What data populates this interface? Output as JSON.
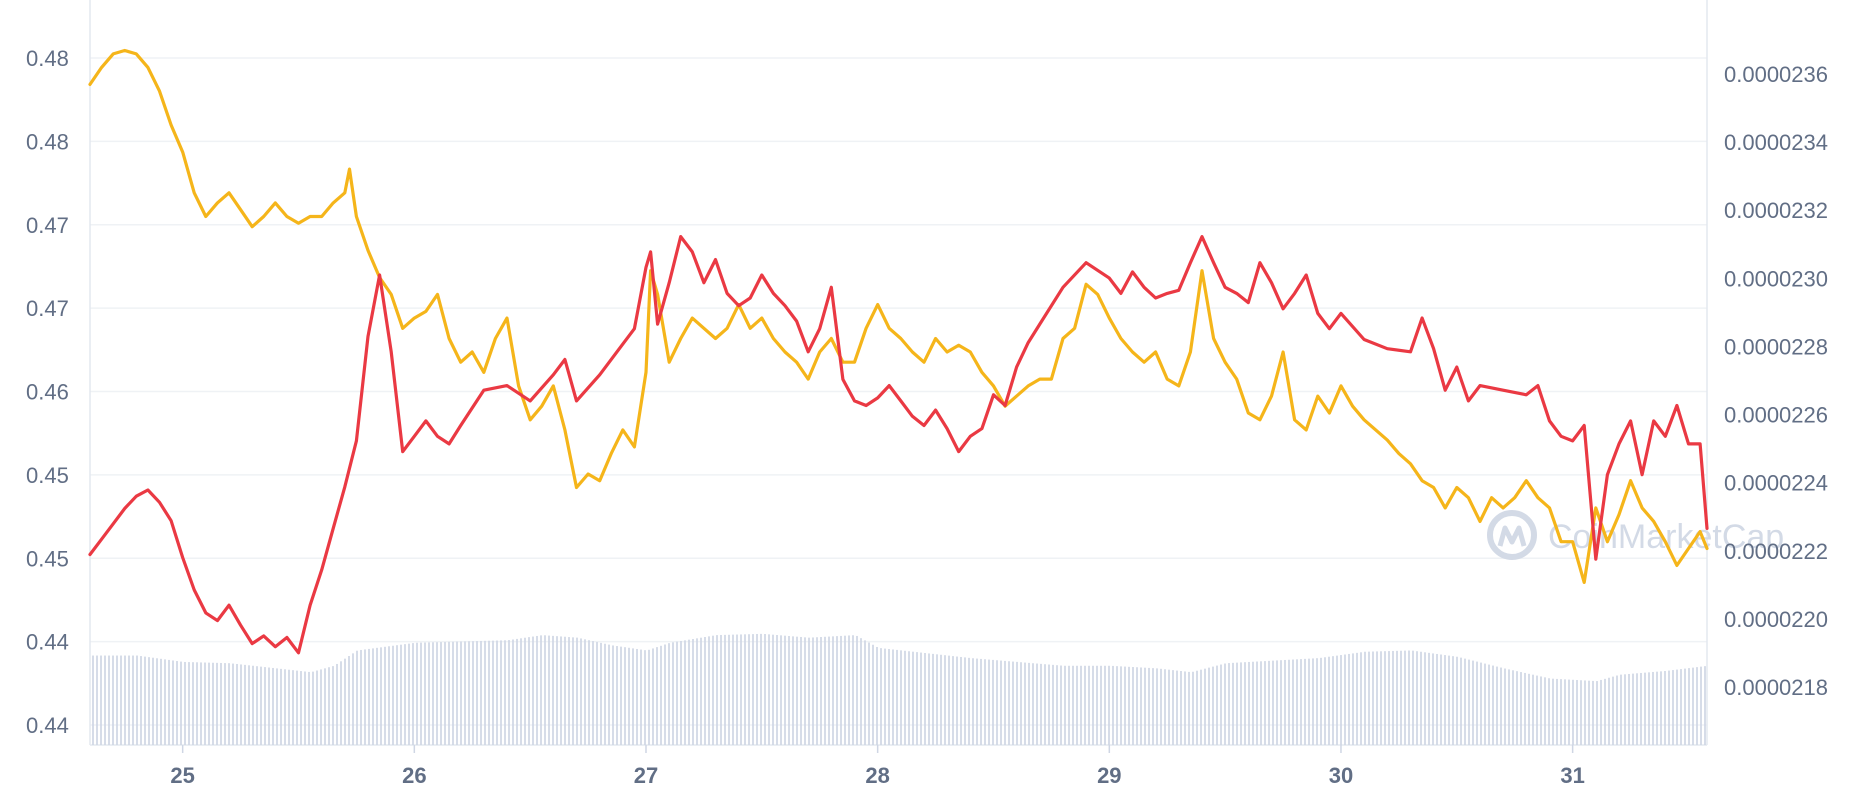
{
  "watermark": "CoinMarketCap",
  "chart_data": {
    "type": "line",
    "title": "",
    "xlabel": "",
    "ylabel": "",
    "grid": true,
    "x_ticks": [
      "25",
      "26",
      "27",
      "28",
      "29",
      "30",
      "31"
    ],
    "x_range": [
      24.6,
      31.58
    ],
    "y_left_ticks": [
      "0.48",
      "0.48",
      "0.47",
      "0.47",
      "0.46",
      "0.45",
      "0.45",
      "0.44",
      "0.44"
    ],
    "y_left_range": [
      0.4374,
      0.4846
    ],
    "y_right_ticks": [
      "0.0000236",
      "0.0000234",
      "0.0000232",
      "0.0000230",
      "0.0000228",
      "0.0000226",
      "0.0000224",
      "0.0000222",
      "0.0000220",
      "0.0000218"
    ],
    "y_right_range": [
      2.162e-05,
      2.376e-05
    ],
    "colors": {
      "left_series": "#ea3943",
      "right_series": "#f5b51a",
      "volume": "#cfd6e4",
      "grid": "#eff2f5"
    },
    "series": [
      {
        "axis": "left",
        "x": [
          24.6,
          24.65,
          24.7,
          24.75,
          24.8,
          24.85,
          24.9,
          24.95,
          25.0,
          25.05,
          25.1,
          25.15,
          25.2,
          25.25,
          25.3,
          25.35,
          25.4,
          25.45,
          25.5,
          25.55,
          25.6,
          25.65,
          25.7,
          25.75,
          25.8,
          25.85,
          25.9,
          25.95,
          26.0,
          26.05,
          26.1,
          26.15,
          26.2,
          26.3,
          26.4,
          26.5,
          26.6,
          26.65,
          26.7,
          26.8,
          26.9,
          26.95,
          27.0,
          27.02,
          27.05,
          27.1,
          27.15,
          27.2,
          27.25,
          27.3,
          27.35,
          27.4,
          27.45,
          27.5,
          27.55,
          27.6,
          27.65,
          27.7,
          27.75,
          27.8,
          27.85,
          27.9,
          27.95,
          28.0,
          28.05,
          28.1,
          28.15,
          28.2,
          28.25,
          28.3,
          28.35,
          28.4,
          28.45,
          28.5,
          28.55,
          28.6,
          28.65,
          28.7,
          28.8,
          28.9,
          29.0,
          29.05,
          29.1,
          29.15,
          29.2,
          29.25,
          29.3,
          29.35,
          29.4,
          29.45,
          29.5,
          29.55,
          29.6,
          29.65,
          29.7,
          29.75,
          29.8,
          29.85,
          29.9,
          29.95,
          30.0,
          30.1,
          30.2,
          30.3,
          30.35,
          30.4,
          30.45,
          30.5,
          30.55,
          30.6,
          30.7,
          30.8,
          30.85,
          30.9,
          30.95,
          31.0,
          31.05,
          31.1,
          31.15,
          31.2,
          31.25,
          31.3,
          31.35,
          31.4,
          31.45,
          31.5,
          31.55,
          31.58
        ],
        "y": [
          0.4498,
          0.4508,
          0.4518,
          0.4528,
          0.4536,
          0.454,
          0.4532,
          0.452,
          0.4496,
          0.4475,
          0.446,
          0.4455,
          0.4465,
          0.4452,
          0.444,
          0.4445,
          0.4438,
          0.4444,
          0.4434,
          0.4465,
          0.4488,
          0.4515,
          0.4542,
          0.4572,
          0.464,
          0.468,
          0.463,
          0.4565,
          0.4575,
          0.4585,
          0.4575,
          0.457,
          0.4582,
          0.4605,
          0.4608,
          0.4598,
          0.4615,
          0.4625,
          0.4598,
          0.4615,
          0.4635,
          0.4645,
          0.4685,
          0.4695,
          0.4648,
          0.4675,
          0.4705,
          0.4695,
          0.4675,
          0.469,
          0.4668,
          0.466,
          0.4665,
          0.468,
          0.4668,
          0.466,
          0.465,
          0.463,
          0.4645,
          0.4672,
          0.4612,
          0.4598,
          0.4595,
          0.46,
          0.4608,
          0.4598,
          0.4588,
          0.4582,
          0.4592,
          0.458,
          0.4565,
          0.4575,
          0.458,
          0.4602,
          0.4595,
          0.462,
          0.4636,
          0.4648,
          0.4672,
          0.4688,
          0.4678,
          0.4668,
          0.4682,
          0.4672,
          0.4665,
          0.4668,
          0.467,
          0.4688,
          0.4705,
          0.4688,
          0.4672,
          0.4668,
          0.4662,
          0.4688,
          0.4675,
          0.4658,
          0.4668,
          0.468,
          0.4655,
          0.4645,
          0.4655,
          0.4638,
          0.4632,
          0.463,
          0.4652,
          0.4632,
          0.4605,
          0.462,
          0.4598,
          0.4608,
          0.4605,
          0.4602,
          0.4608,
          0.4585,
          0.4575,
          0.4572,
          0.4582,
          0.4495,
          0.455,
          0.457,
          0.4585,
          0.455,
          0.4585,
          0.4575,
          0.4595,
          0.457,
          0.457,
          0.4515
        ],
        "name": ""
      },
      {
        "axis": "right",
        "x": [
          24.6,
          24.65,
          24.7,
          24.75,
          24.8,
          24.85,
          24.9,
          24.95,
          25.0,
          25.05,
          25.1,
          25.15,
          25.2,
          25.25,
          25.3,
          25.35,
          25.4,
          25.45,
          25.5,
          25.55,
          25.6,
          25.65,
          25.7,
          25.72,
          25.75,
          25.8,
          25.85,
          25.9,
          25.95,
          26.0,
          26.05,
          26.1,
          26.15,
          26.2,
          26.25,
          26.3,
          26.35,
          26.4,
          26.45,
          26.5,
          26.55,
          26.6,
          26.65,
          26.7,
          26.75,
          26.8,
          26.85,
          26.9,
          26.95,
          27.0,
          27.02,
          27.05,
          27.1,
          27.15,
          27.2,
          27.25,
          27.3,
          27.35,
          27.4,
          27.45,
          27.5,
          27.55,
          27.6,
          27.65,
          27.7,
          27.75,
          27.8,
          27.85,
          27.9,
          27.95,
          28.0,
          28.05,
          28.1,
          28.15,
          28.2,
          28.25,
          28.3,
          28.35,
          28.4,
          28.45,
          28.5,
          28.55,
          28.6,
          28.65,
          28.7,
          28.75,
          28.8,
          28.85,
          28.9,
          28.95,
          29.0,
          29.05,
          29.1,
          29.15,
          29.2,
          29.25,
          29.3,
          29.35,
          29.4,
          29.45,
          29.5,
          29.55,
          29.6,
          29.65,
          29.7,
          29.75,
          29.8,
          29.85,
          29.9,
          29.95,
          30.0,
          30.05,
          30.1,
          30.15,
          30.2,
          30.25,
          30.3,
          30.35,
          30.4,
          30.45,
          30.5,
          30.55,
          30.6,
          30.65,
          30.7,
          30.75,
          30.8,
          30.85,
          30.9,
          30.95,
          31.0,
          31.05,
          31.1,
          31.15,
          31.2,
          31.25,
          31.3,
          31.35,
          31.4,
          31.45,
          31.5,
          31.55,
          31.58
        ],
        "y": [
          2.357e-05,
          2.362e-05,
          2.366e-05,
          2.367e-05,
          2.366e-05,
          2.362e-05,
          2.355e-05,
          2.345e-05,
          2.337e-05,
          2.325e-05,
          2.318e-05,
          2.322e-05,
          2.325e-05,
          2.32e-05,
          2.315e-05,
          2.318e-05,
          2.322e-05,
          2.318e-05,
          2.316e-05,
          2.318e-05,
          2.318e-05,
          2.322e-05,
          2.325e-05,
          2.332e-05,
          2.318e-05,
          2.308e-05,
          2.3e-05,
          2.295e-05,
          2.285e-05,
          2.288e-05,
          2.29e-05,
          2.295e-05,
          2.282e-05,
          2.275e-05,
          2.278e-05,
          2.272e-05,
          2.282e-05,
          2.288e-05,
          2.268e-05,
          2.258e-05,
          2.262e-05,
          2.268e-05,
          2.255e-05,
          2.238e-05,
          2.242e-05,
          2.24e-05,
          2.248e-05,
          2.255e-05,
          2.25e-05,
          2.272e-05,
          2.302e-05,
          2.295e-05,
          2.275e-05,
          2.282e-05,
          2.288e-05,
          2.285e-05,
          2.282e-05,
          2.285e-05,
          2.292e-05,
          2.285e-05,
          2.288e-05,
          2.282e-05,
          2.278e-05,
          2.275e-05,
          2.27e-05,
          2.278e-05,
          2.282e-05,
          2.275e-05,
          2.275e-05,
          2.285e-05,
          2.292e-05,
          2.285e-05,
          2.282e-05,
          2.278e-05,
          2.275e-05,
          2.282e-05,
          2.278e-05,
          2.28e-05,
          2.278e-05,
          2.272e-05,
          2.268e-05,
          2.262e-05,
          2.265e-05,
          2.268e-05,
          2.27e-05,
          2.27e-05,
          2.282e-05,
          2.285e-05,
          2.298e-05,
          2.295e-05,
          2.288e-05,
          2.282e-05,
          2.278e-05,
          2.275e-05,
          2.278e-05,
          2.27e-05,
          2.268e-05,
          2.278e-05,
          2.302e-05,
          2.282e-05,
          2.275e-05,
          2.27e-05,
          2.26e-05,
          2.258e-05,
          2.265e-05,
          2.278e-05,
          2.258e-05,
          2.255e-05,
          2.265e-05,
          2.26e-05,
          2.268e-05,
          2.262e-05,
          2.258e-05,
          2.255e-05,
          2.252e-05,
          2.248e-05,
          2.245e-05,
          2.24e-05,
          2.238e-05,
          2.232e-05,
          2.238e-05,
          2.235e-05,
          2.228e-05,
          2.235e-05,
          2.232e-05,
          2.235e-05,
          2.24e-05,
          2.235e-05,
          2.232e-05,
          2.222e-05,
          2.222e-05,
          2.21e-05,
          2.232e-05,
          2.222e-05,
          2.23e-05,
          2.24e-05,
          2.232e-05,
          2.228e-05,
          2.222e-05,
          2.215e-05,
          2.22e-05,
          2.225e-05,
          2.22e-05
        ],
        "name": ""
      }
    ],
    "volume": {
      "x": [
        24.6,
        24.8,
        25.0,
        25.2,
        25.4,
        25.55,
        25.65,
        25.75,
        26.0,
        26.2,
        26.4,
        26.55,
        26.7,
        26.85,
        27.0,
        27.1,
        27.3,
        27.5,
        27.7,
        27.9,
        28.0,
        28.2,
        28.4,
        28.6,
        28.8,
        29.0,
        29.2,
        29.35,
        29.5,
        29.7,
        29.9,
        30.1,
        30.3,
        30.5,
        30.7,
        30.9,
        31.1,
        31.2,
        31.4,
        31.58
      ],
      "values": [
        0.7,
        0.7,
        0.65,
        0.64,
        0.6,
        0.57,
        0.62,
        0.74,
        0.8,
        0.81,
        0.82,
        0.86,
        0.84,
        0.78,
        0.74,
        0.8,
        0.86,
        0.87,
        0.84,
        0.86,
        0.76,
        0.72,
        0.68,
        0.65,
        0.62,
        0.62,
        0.6,
        0.57,
        0.64,
        0.66,
        0.68,
        0.73,
        0.74,
        0.69,
        0.6,
        0.52,
        0.5,
        0.55,
        0.58,
        0.62
      ]
    }
  }
}
